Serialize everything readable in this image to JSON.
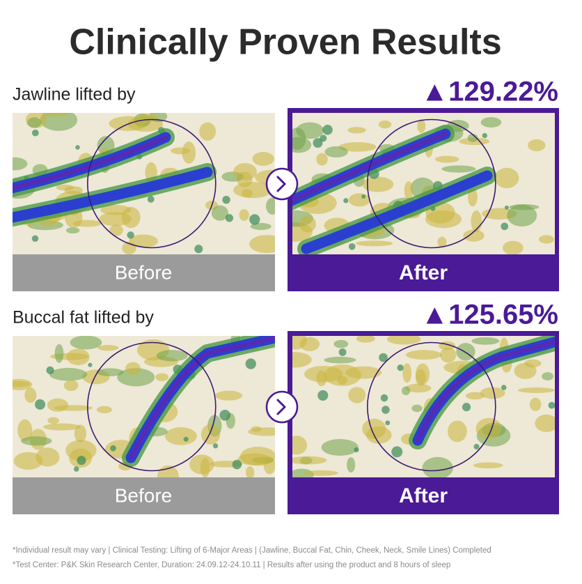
{
  "title": "Clinically Proven Results",
  "panels": [
    {
      "label": "Jawline lifted by",
      "result": "▲129.22%",
      "before": "Before",
      "after": "After"
    },
    {
      "label": "Buccal fat lifted by",
      "result": "▲125.65%",
      "before": "Before",
      "after": "After"
    }
  ],
  "footnotes": [
    "*Individual result may vary | Clinical Testing: Lifting of 6-Major Areas | (Jawline, Buccal Fat, Chin, Cheek, Neck, Smile Lines) Completed",
    "*Test Center: P&K Skin Research Center, Duration: 24.09.12-24.10.11 | Results after using the product and 8 hours of sleep"
  ]
}
